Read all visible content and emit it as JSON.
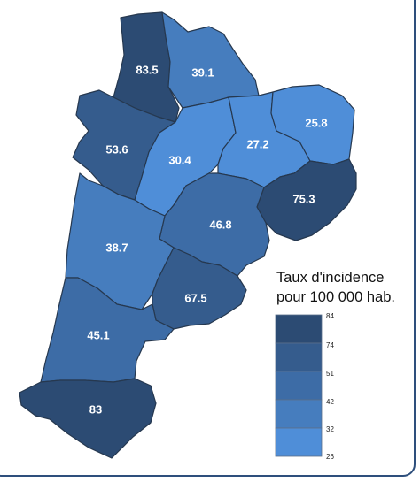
{
  "legend": {
    "title_line1": "Taux d'incidence",
    "title_line2": "pour 100 000 hab.",
    "breaks": [
      "84",
      "74",
      "51",
      "42",
      "32",
      "26"
    ],
    "class_colors": [
      "#2c4b73",
      "#355c8d",
      "#3d6ca6",
      "#467dbe",
      "#4f8ed8"
    ]
  },
  "departments": [
    {
      "value": "83.5",
      "fill": "#2c4b73"
    },
    {
      "value": "39.1",
      "fill": "#467dbe"
    },
    {
      "value": "53.6",
      "fill": "#355c8d"
    },
    {
      "value": "30.4",
      "fill": "#4f8ed8"
    },
    {
      "value": "27.2",
      "fill": "#4f8ed8"
    },
    {
      "value": "25.8",
      "fill": "#4f8ed8"
    },
    {
      "value": "75.3",
      "fill": "#2c4b73"
    },
    {
      "value": "46.8",
      "fill": "#3d6ca6"
    },
    {
      "value": "38.7",
      "fill": "#467dbe"
    },
    {
      "value": "67.5",
      "fill": "#355c8d"
    },
    {
      "value": "45.1",
      "fill": "#3d6ca6"
    },
    {
      "value": "83",
      "fill": "#2c4b73"
    }
  ]
}
